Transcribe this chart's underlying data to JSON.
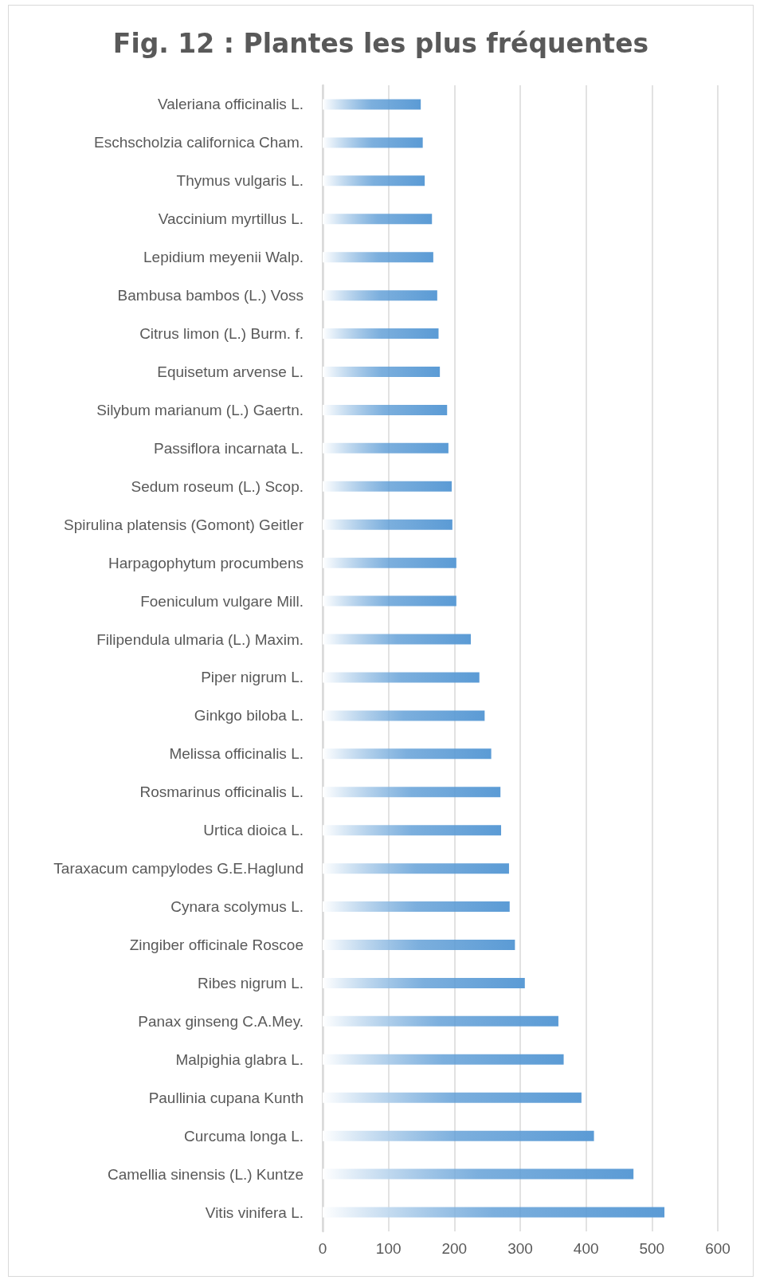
{
  "chart_data": {
    "type": "bar",
    "orientation": "horizontal",
    "title": "Fig. 12 : Plantes les plus fréquentes",
    "categories": [
      "Valeriana officinalis L.",
      "Eschscholzia californica Cham.",
      "Thymus vulgaris L.",
      "Vaccinium myrtillus L.",
      "Lepidium meyenii Walp.",
      "Bambusa bambos (L.) Voss",
      "Citrus limon (L.) Burm. f.",
      "Equisetum arvense L.",
      "Silybum marianum (L.) Gaertn.",
      "Passiflora incarnata L.",
      "Sedum roseum (L.) Scop.",
      "Spirulina platensis (Gomont) Geitler",
      "Harpagophytum procumbens",
      "Foeniculum vulgare Mill.",
      "Filipendula ulmaria (L.) Maxim.",
      "Piper nigrum L.",
      "Ginkgo biloba L.",
      "Melissa officinalis L.",
      "Rosmarinus officinalis L.",
      "Urtica dioica L.",
      "Taraxacum campylodes G.E.Haglund",
      "Cynara scolymus L.",
      "Zingiber officinale Roscoe",
      "Ribes nigrum L.",
      "Panax ginseng C.A.Mey.",
      "Malpighia glabra L.",
      "Paullinia cupana Kunth",
      "Curcuma longa L.",
      "Camellia sinensis (L.) Kuntze",
      "Vitis vinifera L."
    ],
    "values": [
      149,
      152,
      155,
      166,
      168,
      174,
      176,
      178,
      189,
      191,
      196,
      197,
      203,
      203,
      225,
      238,
      246,
      256,
      270,
      271,
      283,
      284,
      292,
      307,
      358,
      366,
      393,
      412,
      472,
      519
    ],
    "color": "#5b9bd5",
    "xlim": [
      0,
      600
    ],
    "xticks": [
      0,
      100,
      200,
      300,
      400,
      500,
      600
    ],
    "grid": "x"
  }
}
